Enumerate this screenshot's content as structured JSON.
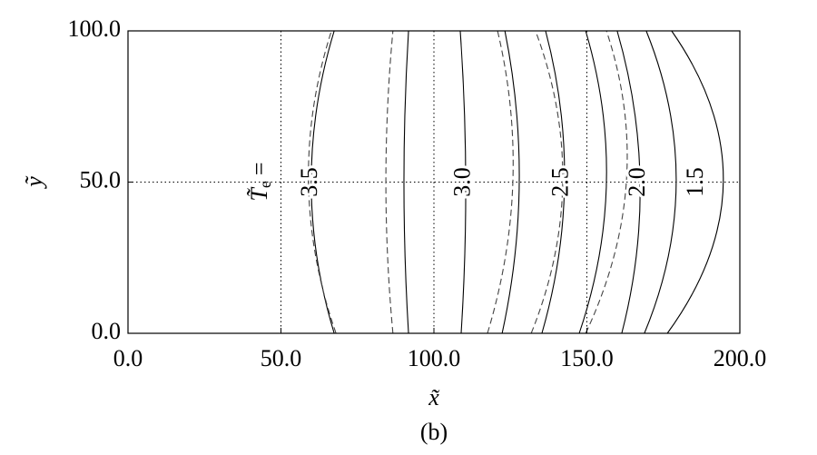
{
  "chart_data": {
    "type": "contour",
    "xlabel": "x̃",
    "ylabel": "ỹ",
    "caption": "(b)",
    "level_symbol": "T̃",
    "level_subscript": "e",
    "level_suffix": "=",
    "xlim": [
      0,
      200
    ],
    "ylim": [
      0,
      100
    ],
    "xticks": [
      {
        "value": 0,
        "label": "0.0"
      },
      {
        "value": 50,
        "label": "50.0"
      },
      {
        "value": 100,
        "label": "100.0"
      },
      {
        "value": 150,
        "label": "150.0"
      },
      {
        "value": 200,
        "label": "200.0"
      }
    ],
    "yticks": [
      {
        "value": 0,
        "label": "0.0"
      },
      {
        "value": 50,
        "label": "50.0"
      },
      {
        "value": 100,
        "label": "100.0"
      }
    ],
    "grid_x": [
      50,
      100,
      150
    ],
    "grid_y": [
      50
    ],
    "y": [
      0,
      50,
      100
    ],
    "series": [
      {
        "style": "solid",
        "x": [
          67.4,
          59.9,
          67.4
        ]
      },
      {
        "style": "solid",
        "x": [
          91.7,
          90.2,
          91.7
        ]
      },
      {
        "style": "solid",
        "x": [
          108.9,
          110.4,
          108.6
        ]
      },
      {
        "style": "solid",
        "x": [
          122.3,
          127.9,
          123.2
        ]
      },
      {
        "style": "solid",
        "x": [
          135.3,
          142.7,
          136.5
        ]
      },
      {
        "style": "solid",
        "x": [
          147.5,
          156.4,
          149.6
        ]
      },
      {
        "style": "solid",
        "x": [
          161.4,
          167.4,
          159.9
        ]
      },
      {
        "style": "solid",
        "x": [
          168.8,
          179.2,
          169.4
        ]
      },
      {
        "style": "solid",
        "x": [
          176.3,
          194.6,
          177.7
        ]
      },
      {
        "style": "dashed",
        "x": [
          68.0,
          59.0,
          66.5
        ]
      },
      {
        "style": "dashed",
        "x": [
          86.6,
          84.3,
          86.6
        ]
      },
      {
        "style": "dashed",
        "x": [
          117.5,
          125.8,
          120.8
        ]
      },
      {
        "style": "dashed",
        "x": [
          131.8,
          142.1,
          133.2
        ]
      },
      {
        "style": "dashed",
        "x": [
          149.6,
          162.9,
          156.4
        ]
      }
    ],
    "contour_labels": [
      {
        "label": "3.5",
        "x": 60,
        "y": 50
      },
      {
        "label": "3.0",
        "x": 110,
        "y": 50
      },
      {
        "label": "2.5",
        "x": 142,
        "y": 50
      },
      {
        "label": "2.0",
        "x": 167,
        "y": 50
      },
      {
        "label": "1.5",
        "x": 186,
        "y": 50
      }
    ]
  }
}
